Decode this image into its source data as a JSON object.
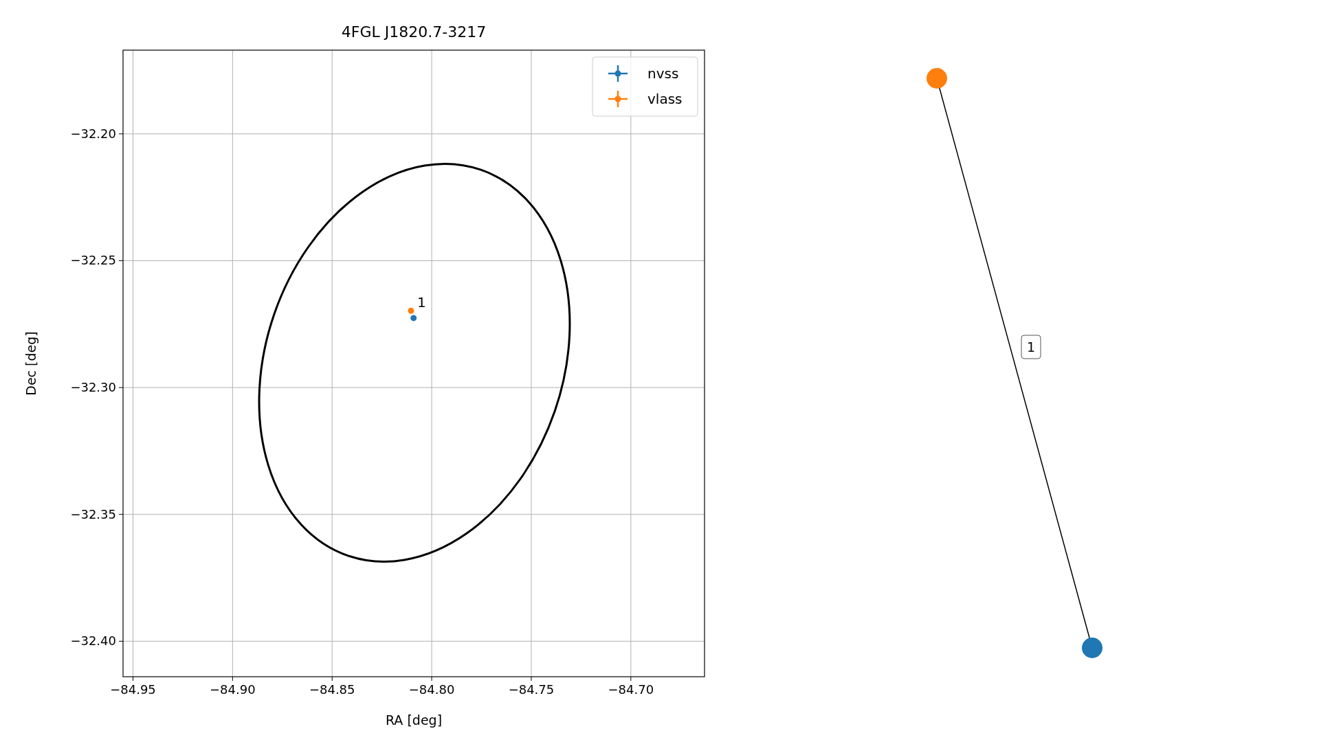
{
  "chart_data": [
    {
      "type": "scatter",
      "title": "4FGL J1820.7-3217",
      "xlabel": "RA [deg]",
      "ylabel": "Dec [deg]",
      "xlim": [
        -84.955,
        -84.663
      ],
      "ylim": [
        -32.414,
        -32.167
      ],
      "xticks": [
        {
          "value": -84.95,
          "label": "−84.95"
        },
        {
          "value": -84.9,
          "label": "−84.90"
        },
        {
          "value": -84.85,
          "label": "−84.85"
        },
        {
          "value": -84.8,
          "label": "−84.80"
        },
        {
          "value": -84.75,
          "label": "−84.75"
        },
        {
          "value": -84.7,
          "label": "−84.70"
        }
      ],
      "yticks": [
        {
          "value": -32.2,
          "label": "−32.20"
        },
        {
          "value": -32.25,
          "label": "−32.25"
        },
        {
          "value": -32.3,
          "label": "−32.30"
        },
        {
          "value": -32.35,
          "label": "−32.35"
        },
        {
          "value": -32.4,
          "label": "−32.40"
        }
      ],
      "grid": true,
      "legend": "top right",
      "marker": "circle",
      "annotations": [
        {
          "text": "1",
          "x": -84.8104,
          "y": -32.2697
        }
      ],
      "series": [
        {
          "name": "nvss",
          "color": "#1f77b4",
          "x": [
            -84.8091
          ],
          "values": [
            -32.2726
          ],
          "xerrors": [
            0.0012
          ]
        },
        {
          "name": "vlass",
          "color": "#ff7f0e",
          "x": [
            -84.8104
          ],
          "values": [
            -32.2697
          ]
        }
      ]
    },
    {
      "type": "other",
      "annotations": [
        "1"
      ]
    }
  ]
}
